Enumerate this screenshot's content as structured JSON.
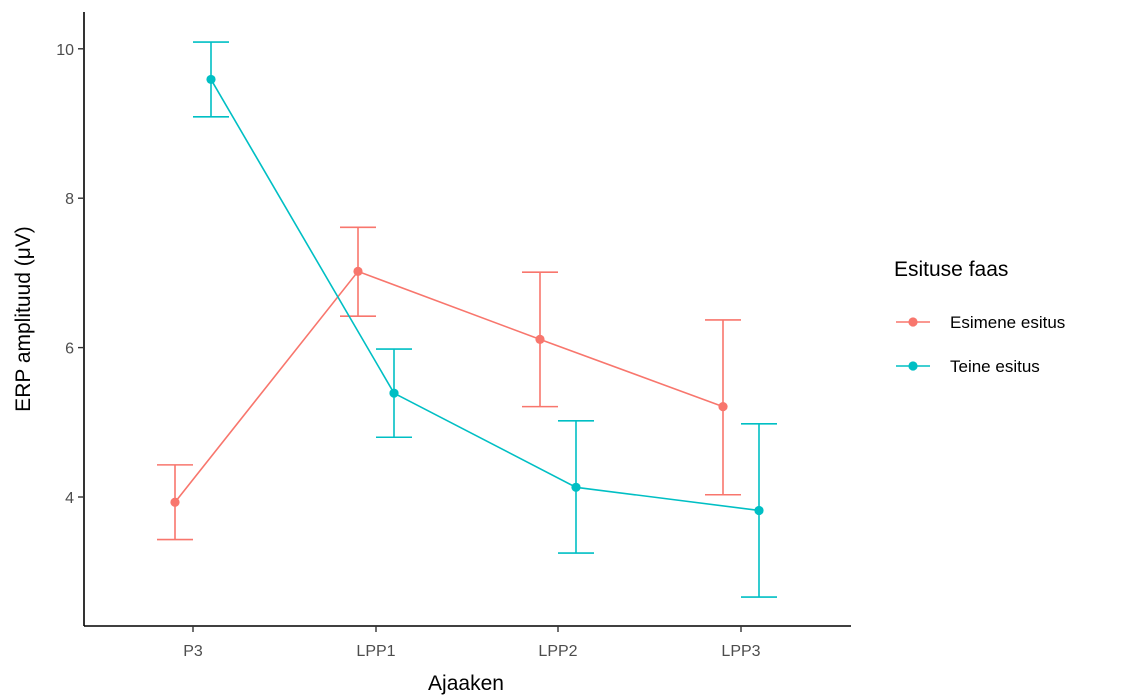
{
  "chart_data": {
    "type": "line",
    "title": "",
    "xlabel": "Ajaaken",
    "ylabel": "ERP amplituud (μV)",
    "categories": [
      "P3",
      "LPP1",
      "LPP2",
      "LPP3"
    ],
    "y_ticks": [
      "4",
      "6",
      "8",
      "10"
    ],
    "ylim": [
      2.4,
      10.5
    ],
    "grid": false,
    "legend": {
      "title": "Esituse faas",
      "position": "right"
    },
    "series": [
      {
        "name": "Esimene esitus",
        "color": "#F8766D",
        "values": [
          3.93,
          7.02,
          6.11,
          5.21
        ],
        "error_low": [
          3.43,
          6.42,
          5.21,
          4.03
        ],
        "error_high": [
          4.43,
          7.61,
          7.01,
          6.37
        ]
      },
      {
        "name": "Teine esitus",
        "color": "#00BFC4",
        "values": [
          9.59,
          5.39,
          4.13,
          3.82
        ],
        "error_low": [
          9.09,
          4.8,
          3.25,
          2.66
        ],
        "error_high": [
          10.09,
          5.98,
          5.02,
          4.98
        ]
      }
    ]
  }
}
